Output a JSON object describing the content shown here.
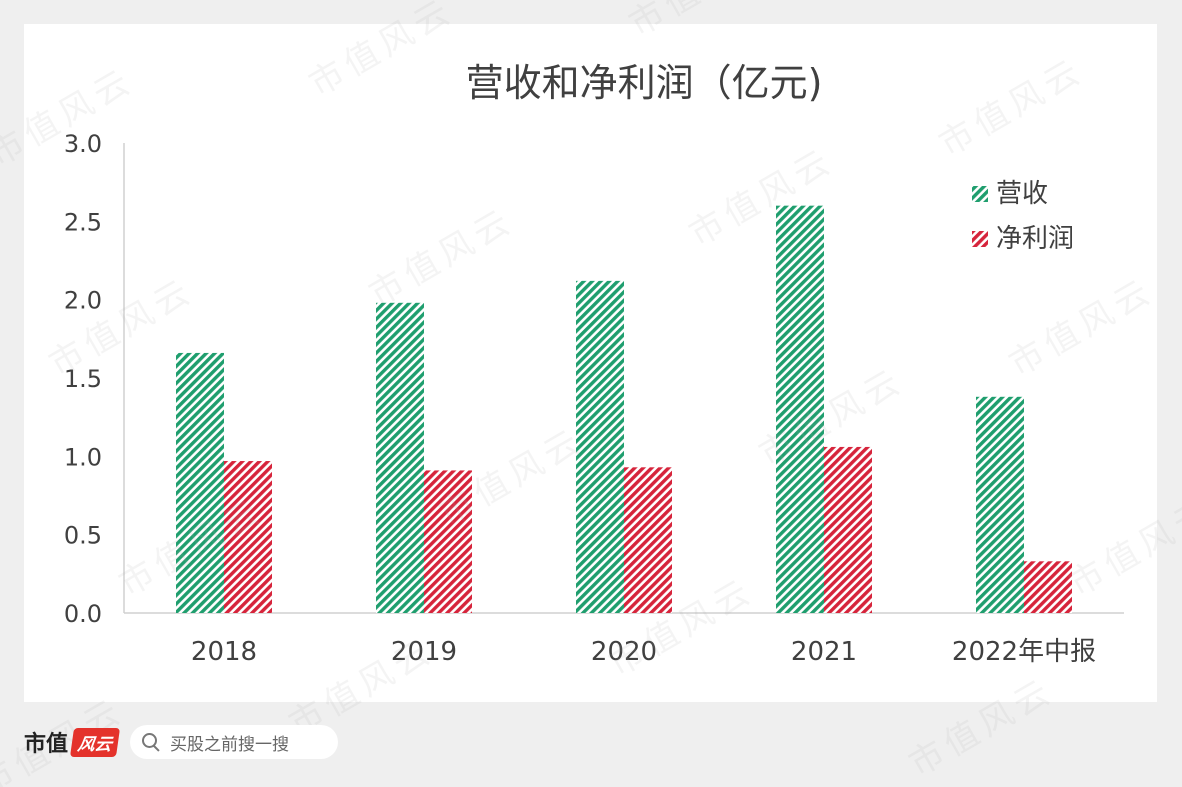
{
  "chart_data": {
    "type": "bar",
    "title": "营收和净利润（亿元)",
    "categories": [
      "2018",
      "2019",
      "2020",
      "2021",
      "2022年中报"
    ],
    "series": [
      {
        "name": "营收",
        "values": [
          1.66,
          1.98,
          2.12,
          2.6,
          1.38
        ],
        "color": "#1f9e6e"
      },
      {
        "name": "净利润",
        "values": [
          0.97,
          0.91,
          0.93,
          1.06,
          0.33
        ],
        "color": "#d6243b"
      }
    ],
    "ylim": [
      0,
      3.0
    ],
    "yticks": [
      "0.0",
      "0.5",
      "1.0",
      "1.5",
      "2.0",
      "2.5",
      "3.0"
    ],
    "grid": false,
    "legend": "top-right"
  },
  "watermark": "市值风云",
  "footer": {
    "brand": "市值",
    "brand_logo": "风云",
    "search_placeholder": "买股之前搜一搜",
    "search_icon": "search-icon"
  }
}
